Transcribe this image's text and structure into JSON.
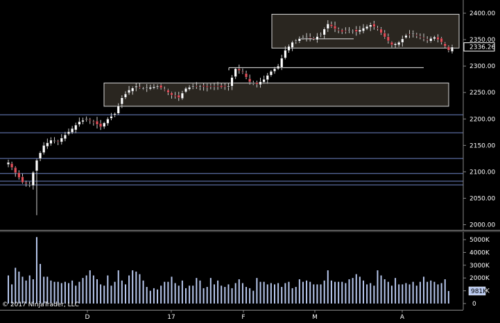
{
  "chart_data": {
    "type": "candlestick",
    "watermark": "© 2017 NinjaTrader, LLC",
    "price_axis": {
      "ticks": [
        "2000.00",
        "2050.00",
        "2100.00",
        "2150.00",
        "2200.00",
        "2250.00",
        "2300.00",
        "2350.00",
        "2400.00"
      ],
      "ylim": [
        1995,
        2410
      ],
      "last_price_label": "2336.26"
    },
    "volume_axis": {
      "ticks": [
        "0",
        "1000K",
        "2000K",
        "3000K",
        "4000K",
        "5000K"
      ],
      "ylim": [
        0,
        5600
      ],
      "last_volume_label": "981K"
    },
    "x_axis_labels": [
      "D",
      "17",
      "F",
      "M",
      "A"
    ],
    "horizontal_levels": [
      2208.5,
      2174.5,
      2126,
      2097.5,
      2083,
      2076
    ],
    "zones": [
      {
        "top": 2398,
        "bottom": 2334
      },
      {
        "top": 2268,
        "bottom": 2224
      }
    ],
    "segments": [
      {
        "price": 2351.5,
        "from": 2351.5
      },
      {
        "price": 2297,
        "from": 2297
      }
    ],
    "colors": {
      "up": "#ffffff",
      "down": "#e0505a",
      "wick": "#cfcfcf",
      "level": "#6f86c8",
      "volume": "#b8c8ee",
      "zone_fill": "#2a2620"
    },
    "volume": [
      2200,
      1500,
      2800,
      2500,
      2100,
      1800,
      2200,
      1900,
      5200,
      3100,
      2100,
      2100,
      1800,
      1700,
      1700,
      1600,
      1700,
      1600,
      1800,
      1400,
      1700,
      2000,
      2200,
      2600,
      2200,
      1900,
      1500,
      1400,
      2200,
      1400,
      1700,
      2600,
      1800,
      1500,
      2200,
      2600,
      2500,
      2300,
      1800,
      1300,
      1000,
      1200,
      1100,
      1400,
      1700,
      1700,
      2100,
      1600,
      1400,
      1800,
      1200,
      1400,
      1400,
      2000,
      1800,
      1200,
      1300,
      2000,
      1500,
      1800,
      1400,
      1300,
      1500,
      1200,
      1600,
      1900,
      1600,
      1300,
      1200,
      1000,
      2000,
      1700,
      1700,
      1500,
      1600,
      1500,
      1600,
      1300,
      1600,
      1700,
      1200,
      1300,
      1900,
      1700,
      1800,
      1700,
      1500,
      1500,
      1500,
      1800,
      2600,
      1800,
      1700,
      1700,
      1700,
      1600,
      1900,
      2000,
      2300,
      2100,
      1800,
      1500,
      1600,
      1400,
      2600,
      2200,
      1900,
      1700,
      1400,
      2000,
      1500,
      1500,
      1600,
      1500,
      1700,
      1400,
      1700,
      2100,
      1700,
      1800,
      1700,
      1500,
      1600,
      1900,
      981
    ]
  }
}
